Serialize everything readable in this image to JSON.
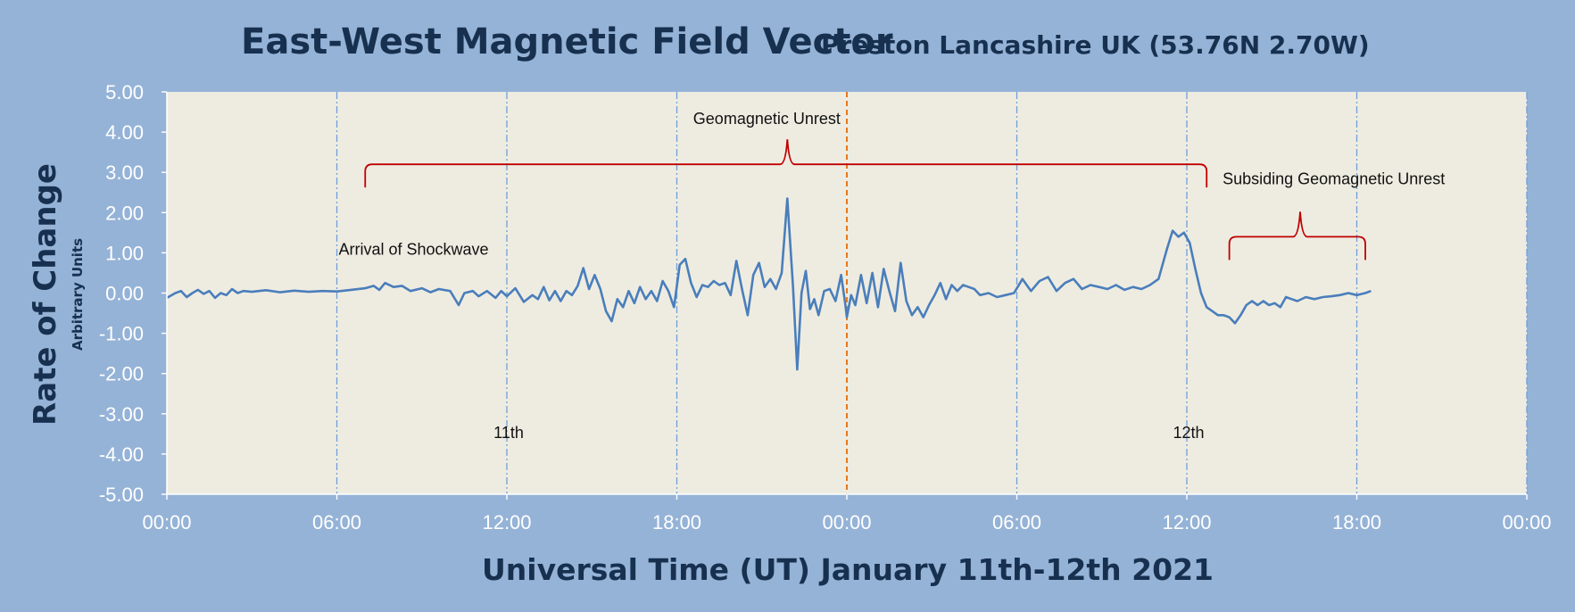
{
  "chart_data": {
    "type": "line",
    "title": "East-West Magnetic Field Vector",
    "subtitle": "Preston Lancashire UK (53.76N 2.70W)",
    "xlabel": "Universal Time (UT) January 11th-12th 2021",
    "ylabel": "Rate of Change",
    "ylabel_secondary": "Arbitrary Units",
    "ylim": [
      -5,
      5
    ],
    "xlim_hours": [
      0,
      48
    ],
    "x_unit": "hours since 00:00 UT January 11th 2021",
    "yticks": [
      "5.00",
      "4.00",
      "3.00",
      "2.00",
      "1.00",
      "0.00",
      "-1.00",
      "-2.00",
      "-3.00",
      "-4.00",
      "-5.00"
    ],
    "xticks": [
      "00:00",
      "06:00",
      "12:00",
      "18:00",
      "00:00",
      "06:00",
      "12:00",
      "18:00",
      "00:00"
    ],
    "grid": "vertical dash-dot lines every 6 hours",
    "midnight_marker_hour": 24,
    "colors": {
      "series": "#4a7ebb",
      "plot_bg": "#eeece1",
      "page_bg": "#95b3d7",
      "grid": "#6f9fdb",
      "midnight": "#e36c09",
      "bracket": "#c00000",
      "title": "#17304f"
    },
    "series": [
      {
        "color": "#4a7ebb",
        "points": [
          [
            0.0,
            -0.12
          ],
          [
            0.3,
            0.0
          ],
          [
            0.5,
            0.05
          ],
          [
            0.7,
            -0.1
          ],
          [
            0.9,
            0.0
          ],
          [
            1.1,
            0.08
          ],
          [
            1.3,
            -0.02
          ],
          [
            1.5,
            0.05
          ],
          [
            1.7,
            -0.12
          ],
          [
            1.9,
            0.0
          ],
          [
            2.1,
            -0.05
          ],
          [
            2.3,
            0.1
          ],
          [
            2.5,
            0.0
          ],
          [
            2.7,
            0.05
          ],
          [
            3.0,
            0.03
          ],
          [
            3.5,
            0.07
          ],
          [
            4.0,
            0.02
          ],
          [
            4.5,
            0.06
          ],
          [
            5.0,
            0.03
          ],
          [
            5.5,
            0.05
          ],
          [
            6.0,
            0.04
          ],
          [
            6.5,
            0.08
          ],
          [
            7.0,
            0.12
          ],
          [
            7.3,
            0.18
          ],
          [
            7.5,
            0.08
          ],
          [
            7.7,
            0.25
          ],
          [
            8.0,
            0.15
          ],
          [
            8.3,
            0.18
          ],
          [
            8.6,
            0.05
          ],
          [
            9.0,
            0.12
          ],
          [
            9.3,
            0.02
          ],
          [
            9.6,
            0.1
          ],
          [
            10.0,
            0.05
          ],
          [
            10.3,
            -0.3
          ],
          [
            10.5,
            0.0
          ],
          [
            10.8,
            0.05
          ],
          [
            11.0,
            -0.08
          ],
          [
            11.3,
            0.05
          ],
          [
            11.6,
            -0.12
          ],
          [
            11.8,
            0.05
          ],
          [
            12.0,
            -0.08
          ],
          [
            12.3,
            0.12
          ],
          [
            12.6,
            -0.22
          ],
          [
            12.9,
            -0.05
          ],
          [
            13.1,
            -0.15
          ],
          [
            13.3,
            0.15
          ],
          [
            13.5,
            -0.18
          ],
          [
            13.7,
            0.05
          ],
          [
            13.9,
            -0.2
          ],
          [
            14.1,
            0.05
          ],
          [
            14.3,
            -0.05
          ],
          [
            14.5,
            0.18
          ],
          [
            14.7,
            0.62
          ],
          [
            14.9,
            0.1
          ],
          [
            15.1,
            0.45
          ],
          [
            15.3,
            0.1
          ],
          [
            15.5,
            -0.45
          ],
          [
            15.7,
            -0.7
          ],
          [
            15.9,
            -0.15
          ],
          [
            16.1,
            -0.35
          ],
          [
            16.3,
            0.05
          ],
          [
            16.5,
            -0.25
          ],
          [
            16.7,
            0.15
          ],
          [
            16.9,
            -0.15
          ],
          [
            17.1,
            0.05
          ],
          [
            17.3,
            -0.2
          ],
          [
            17.5,
            0.3
          ],
          [
            17.7,
            0.05
          ],
          [
            17.9,
            -0.35
          ],
          [
            18.1,
            0.7
          ],
          [
            18.3,
            0.85
          ],
          [
            18.5,
            0.25
          ],
          [
            18.7,
            -0.1
          ],
          [
            18.9,
            0.2
          ],
          [
            19.1,
            0.15
          ],
          [
            19.3,
            0.3
          ],
          [
            19.5,
            0.2
          ],
          [
            19.7,
            0.25
          ],
          [
            19.9,
            -0.05
          ],
          [
            20.1,
            0.8
          ],
          [
            20.3,
            0.1
          ],
          [
            20.5,
            -0.55
          ],
          [
            20.7,
            0.45
          ],
          [
            20.9,
            0.75
          ],
          [
            21.1,
            0.15
          ],
          [
            21.3,
            0.35
          ],
          [
            21.5,
            0.1
          ],
          [
            21.7,
            0.5
          ],
          [
            21.9,
            2.35
          ],
          [
            22.1,
            0.15
          ],
          [
            22.25,
            -1.9
          ],
          [
            22.4,
            0.0
          ],
          [
            22.55,
            0.55
          ],
          [
            22.7,
            -0.4
          ],
          [
            22.85,
            -0.15
          ],
          [
            23.0,
            -0.55
          ],
          [
            23.2,
            0.05
          ],
          [
            23.4,
            0.1
          ],
          [
            23.6,
            -0.2
          ],
          [
            23.8,
            0.45
          ],
          [
            23.95,
            -0.3
          ],
          [
            24.0,
            -0.6
          ],
          [
            24.15,
            -0.05
          ],
          [
            24.3,
            -0.3
          ],
          [
            24.5,
            0.45
          ],
          [
            24.7,
            -0.25
          ],
          [
            24.9,
            0.5
          ],
          [
            25.1,
            -0.35
          ],
          [
            25.3,
            0.6
          ],
          [
            25.5,
            0.05
          ],
          [
            25.7,
            -0.45
          ],
          [
            25.9,
            0.75
          ],
          [
            26.1,
            -0.2
          ],
          [
            26.3,
            -0.55
          ],
          [
            26.5,
            -0.35
          ],
          [
            26.7,
            -0.6
          ],
          [
            26.9,
            -0.3
          ],
          [
            27.1,
            -0.05
          ],
          [
            27.3,
            0.25
          ],
          [
            27.5,
            -0.15
          ],
          [
            27.7,
            0.2
          ],
          [
            27.9,
            0.05
          ],
          [
            28.1,
            0.2
          ],
          [
            28.3,
            0.15
          ],
          [
            28.5,
            0.1
          ],
          [
            28.7,
            -0.05
          ],
          [
            29.0,
            0.0
          ],
          [
            29.3,
            -0.1
          ],
          [
            29.6,
            -0.05
          ],
          [
            29.9,
            0.0
          ],
          [
            30.2,
            0.35
          ],
          [
            30.5,
            0.05
          ],
          [
            30.8,
            0.3
          ],
          [
            31.1,
            0.4
          ],
          [
            31.4,
            0.05
          ],
          [
            31.7,
            0.25
          ],
          [
            32.0,
            0.35
          ],
          [
            32.3,
            0.1
          ],
          [
            32.6,
            0.2
          ],
          [
            32.9,
            0.15
          ],
          [
            33.2,
            0.1
          ],
          [
            33.5,
            0.2
          ],
          [
            33.8,
            0.08
          ],
          [
            34.1,
            0.15
          ],
          [
            34.4,
            0.1
          ],
          [
            34.7,
            0.2
          ],
          [
            35.0,
            0.35
          ],
          [
            35.3,
            1.1
          ],
          [
            35.5,
            1.55
          ],
          [
            35.7,
            1.4
          ],
          [
            35.9,
            1.5
          ],
          [
            36.1,
            1.25
          ],
          [
            36.3,
            0.6
          ],
          [
            36.5,
            0.0
          ],
          [
            36.7,
            -0.35
          ],
          [
            36.9,
            -0.45
          ],
          [
            37.1,
            -0.55
          ],
          [
            37.3,
            -0.55
          ],
          [
            37.5,
            -0.6
          ],
          [
            37.7,
            -0.75
          ],
          [
            37.9,
            -0.55
          ],
          [
            38.1,
            -0.3
          ],
          [
            38.3,
            -0.2
          ],
          [
            38.5,
            -0.3
          ],
          [
            38.7,
            -0.2
          ],
          [
            38.9,
            -0.3
          ],
          [
            39.1,
            -0.25
          ],
          [
            39.3,
            -0.35
          ],
          [
            39.5,
            -0.1
          ],
          [
            39.7,
            -0.15
          ],
          [
            39.9,
            -0.2
          ],
          [
            40.2,
            -0.1
          ],
          [
            40.5,
            -0.15
          ],
          [
            40.8,
            -0.1
          ],
          [
            41.1,
            -0.08
          ],
          [
            41.4,
            -0.05
          ],
          [
            41.7,
            0.0
          ],
          [
            42.0,
            -0.05
          ],
          [
            42.3,
            0.0
          ],
          [
            42.5,
            0.05
          ]
        ]
      }
    ],
    "annotations": [
      {
        "text": "Geomagnetic Unrest",
        "x": 21.6,
        "y": 4.2
      },
      {
        "text": "Arrival of Shockwave",
        "x": 6.0,
        "y": 0.95
      },
      {
        "text": "Subsiding Geomagnetic Unrest",
        "x": 37.2,
        "y": 2.7
      },
      {
        "text": "11th",
        "x": 12.0,
        "y": -3.6
      },
      {
        "text": "12th",
        "x": 36.0,
        "y": -3.6
      }
    ],
    "brackets": [
      {
        "label": "Geomagnetic Unrest",
        "x_start": 7.0,
        "x_end": 36.7,
        "y": 3.2,
        "peak_x": 21.9
      },
      {
        "label": "Subsiding Geomagnetic Unrest",
        "x_start": 37.5,
        "x_end": 42.3,
        "y": 1.4,
        "peak_x": 40.0
      }
    ]
  }
}
